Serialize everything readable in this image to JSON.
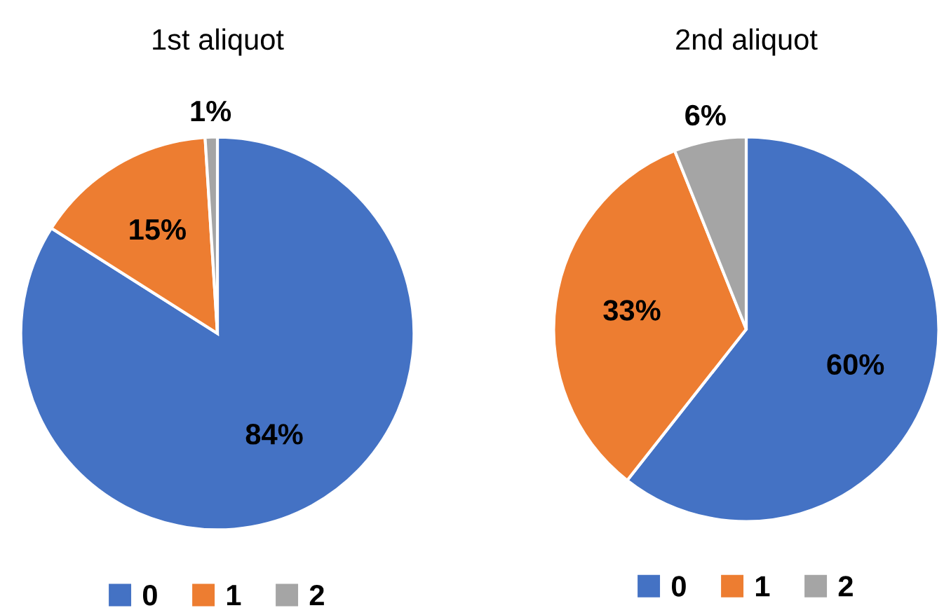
{
  "chart_data": [
    {
      "type": "pie",
      "title": "1st aliquot",
      "categories": [
        "0",
        "1",
        "2"
      ],
      "values": [
        84,
        15,
        1
      ],
      "value_labels": [
        "84%",
        "15%",
        "1%"
      ],
      "colors": [
        "#4472c4",
        "#ed7d31",
        "#a5a5a5"
      ],
      "legend": "bottom"
    },
    {
      "type": "pie",
      "title": "2nd aliquot",
      "categories": [
        "0",
        "1",
        "2"
      ],
      "values": [
        60,
        33,
        6
      ],
      "value_labels": [
        "60%",
        "33%",
        "6%"
      ],
      "colors": [
        "#4472c4",
        "#ed7d31",
        "#a5a5a5"
      ],
      "legend": "bottom"
    }
  ]
}
